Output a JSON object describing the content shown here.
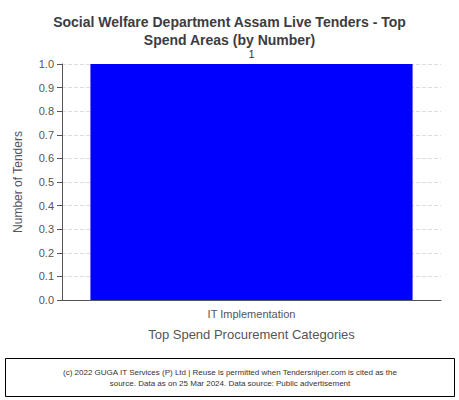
{
  "chart_data": {
    "type": "bar",
    "title": "Social Welfare Department Assam Live Tenders - Top\nSpend Areas (by Number)",
    "xlabel": "Top Spend Procurement Categories",
    "ylabel": "Number of Tenders",
    "categories": [
      "IT Implementation"
    ],
    "values": [
      1
    ],
    "color": "#0000ff",
    "data_labels": true,
    "ylim": [
      0,
      1.0
    ],
    "yticks": [
      {
        "value": 0,
        "label": "0.0"
      },
      0.1,
      0.2,
      0.3,
      0.4,
      0.5,
      0.6,
      0.7,
      0.8,
      0.9,
      {
        "value": 1.0,
        "label": "1.0"
      }
    ],
    "grid": true,
    "annotations": [
      "(c) 2022 GUGA IT Services (P) Ltd | Reuse is permitted when Tendersniper.com is cited as the\nsource. Data as on 25 Mar 2024. Data source: Public advertisement"
    ]
  }
}
